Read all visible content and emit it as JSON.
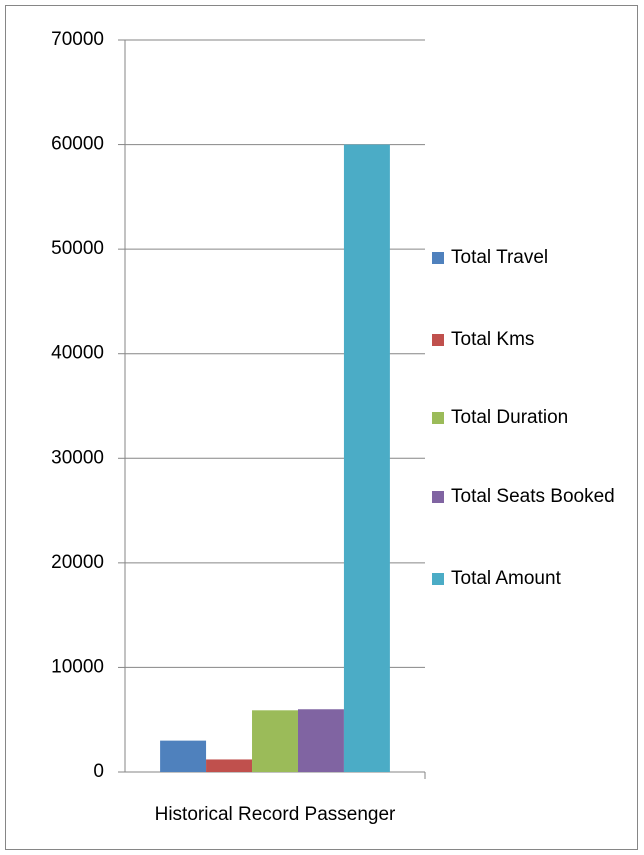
{
  "chart_data": {
    "type": "bar",
    "categories": [
      "Historical Record Passenger"
    ],
    "series": [
      {
        "name": "Total Travel",
        "color": "#4f81bd",
        "values": [
          3000
        ]
      },
      {
        "name": "Total Kms",
        "color": "#c0504d",
        "values": [
          1200
        ]
      },
      {
        "name": "Total Duration",
        "color": "#9bbb59",
        "values": [
          5900
        ]
      },
      {
        "name": "Total Seats Booked",
        "color": "#8064a2",
        "values": [
          6000
        ]
      },
      {
        "name": "Total Amount",
        "color": "#4bacc6",
        "values": [
          60000
        ]
      }
    ],
    "ylim": [
      0,
      70000
    ],
    "yticks": [
      0,
      10000,
      20000,
      30000,
      40000,
      50000,
      60000,
      70000
    ],
    "grid": true,
    "legend": "right"
  }
}
